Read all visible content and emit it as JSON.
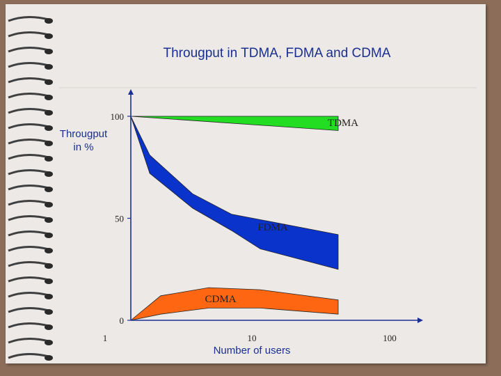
{
  "slide": {
    "title": "Througput  in TDMA, FDMA and CDMA"
  },
  "colors": {
    "tdma": "#22dd22",
    "fdma": "#0a33cc",
    "cdma": "#ff6611",
    "axis": "#1a2f8f",
    "page": "#ece9e6",
    "frame": "#8c6d5a",
    "binding_ring": "#3f3f3f"
  },
  "chart_data": {
    "type": "area",
    "title": "Througput  in TDMA, FDMA and CDMA",
    "xlabel": "Number of users",
    "ylabel": "Througput\nin %",
    "x_scale": "log",
    "xlim": [
      1,
      100
    ],
    "ylim": [
      0,
      100
    ],
    "x_ticks": [
      {
        "value": 1,
        "label": "1"
      },
      {
        "value": 10,
        "label": "10"
      },
      {
        "value": 100,
        "label": "100"
      }
    ],
    "y_ticks": [
      {
        "value": 0,
        "label": "0"
      },
      {
        "value": 50,
        "label": "50"
      },
      {
        "value": 100,
        "label": "100"
      }
    ],
    "grid": false,
    "series": [
      {
        "name": "TDMA",
        "color": "#22dd22",
        "upper": [
          {
            "x": 1,
            "y": 100
          },
          {
            "x": 40,
            "y": 100
          }
        ],
        "lower": [
          {
            "x": 1,
            "y": 100
          },
          {
            "x": 40,
            "y": 93
          }
        ]
      },
      {
        "name": "FDMA",
        "color": "#0a33cc",
        "upper": [
          {
            "x": 1,
            "y": 100
          },
          {
            "x": 1.4,
            "y": 81
          },
          {
            "x": 3,
            "y": 62
          },
          {
            "x": 6,
            "y": 52
          },
          {
            "x": 40,
            "y": 42
          }
        ],
        "lower": [
          {
            "x": 1,
            "y": 100
          },
          {
            "x": 1.4,
            "y": 72
          },
          {
            "x": 3,
            "y": 55
          },
          {
            "x": 6,
            "y": 44
          },
          {
            "x": 10,
            "y": 35
          },
          {
            "x": 40,
            "y": 25
          }
        ]
      },
      {
        "name": "CDMA",
        "color": "#ff6611",
        "upper": [
          {
            "x": 1,
            "y": 0
          },
          {
            "x": 1.7,
            "y": 12
          },
          {
            "x": 4,
            "y": 16
          },
          {
            "x": 10,
            "y": 15
          },
          {
            "x": 40,
            "y": 10
          }
        ],
        "lower": [
          {
            "x": 1,
            "y": 0
          },
          {
            "x": 1.7,
            "y": 3
          },
          {
            "x": 4,
            "y": 6
          },
          {
            "x": 10,
            "y": 6
          },
          {
            "x": 40,
            "y": 3
          }
        ]
      }
    ],
    "labels": [
      {
        "text": "TDMA",
        "x": 30,
        "y": 96
      },
      {
        "text": "FDMA",
        "x": 12,
        "y": 45
      },
      {
        "text": "CDMA",
        "x": 4.5,
        "y": 10
      }
    ]
  }
}
